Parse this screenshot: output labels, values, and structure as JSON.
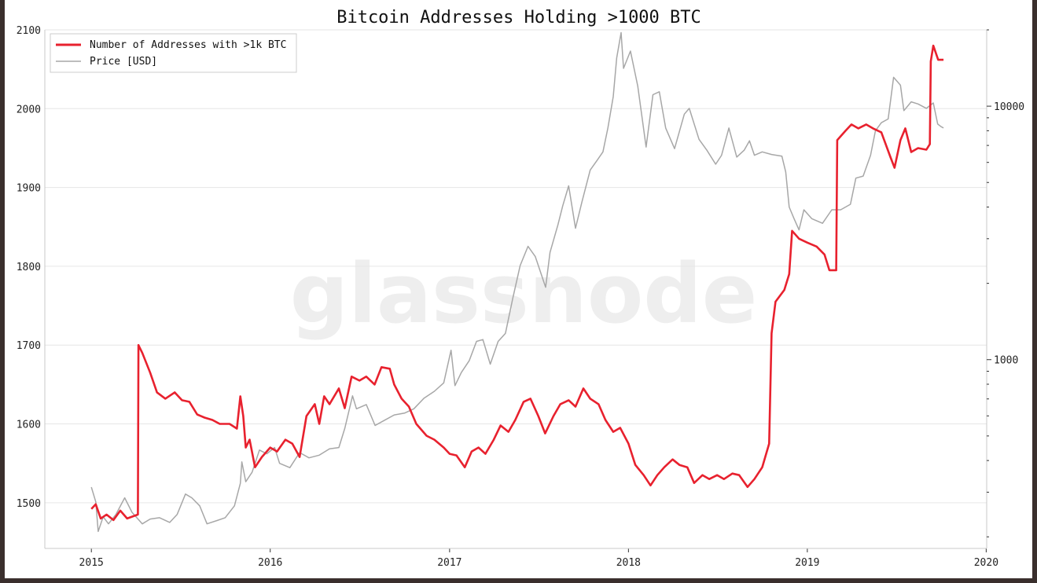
{
  "chart_data": {
    "type": "line",
    "title": "Bitcoin Addresses Holding >1000 BTC",
    "watermark": "glassnode",
    "xlabel": "",
    "ylabel": "",
    "x_axis": {
      "type": "date",
      "range": [
        "2014-09-28",
        "2020-01-02"
      ],
      "ticks": [
        "2015",
        "2016",
        "2017",
        "2018",
        "2019",
        "2020"
      ]
    },
    "y_left": {
      "range": [
        1442,
        2100
      ],
      "ticks": [
        1500,
        1600,
        1700,
        1800,
        1900,
        2000,
        2100
      ]
    },
    "y_right": {
      "scale": "log",
      "range": [
        180,
        20000
      ],
      "labeled_ticks": [
        "1000",
        "10000"
      ]
    },
    "grid": true,
    "legend_position": "top-left",
    "series": [
      {
        "name": "Number of Addresses with >1k BTC",
        "axis": "left",
        "color": "#e8212e",
        "points": [
          [
            "2015-01-01",
            1492
          ],
          [
            "2015-01-10",
            1498
          ],
          [
            "2015-01-20",
            1480
          ],
          [
            "2015-02-01",
            1485
          ],
          [
            "2015-02-15",
            1478
          ],
          [
            "2015-03-01",
            1490
          ],
          [
            "2015-03-15",
            1480
          ],
          [
            "2015-04-06",
            1485
          ],
          [
            "2015-04-07",
            1700
          ],
          [
            "2015-04-15",
            1690
          ],
          [
            "2015-05-01",
            1665
          ],
          [
            "2015-05-15",
            1640
          ],
          [
            "2015-06-01",
            1632
          ],
          [
            "2015-06-20",
            1640
          ],
          [
            "2015-07-05",
            1630
          ],
          [
            "2015-07-20",
            1628
          ],
          [
            "2015-08-05",
            1612
          ],
          [
            "2015-08-20",
            1608
          ],
          [
            "2015-09-05",
            1605
          ],
          [
            "2015-09-20",
            1600
          ],
          [
            "2015-10-10",
            1600
          ],
          [
            "2015-10-25",
            1594
          ],
          [
            "2015-11-01",
            1635
          ],
          [
            "2015-11-07",
            1610
          ],
          [
            "2015-11-12",
            1570
          ],
          [
            "2015-11-20",
            1580
          ],
          [
            "2015-12-01",
            1545
          ],
          [
            "2015-12-15",
            1558
          ],
          [
            "2016-01-01",
            1570
          ],
          [
            "2016-01-15",
            1565
          ],
          [
            "2016-02-01",
            1580
          ],
          [
            "2016-02-15",
            1575
          ],
          [
            "2016-03-01",
            1558
          ],
          [
            "2016-03-15",
            1610
          ],
          [
            "2016-04-01",
            1625
          ],
          [
            "2016-04-10",
            1600
          ],
          [
            "2016-04-20",
            1635
          ],
          [
            "2016-05-01",
            1625
          ],
          [
            "2016-05-20",
            1645
          ],
          [
            "2016-06-01",
            1620
          ],
          [
            "2016-06-15",
            1660
          ],
          [
            "2016-07-01",
            1655
          ],
          [
            "2016-07-15",
            1660
          ],
          [
            "2016-08-01",
            1650
          ],
          [
            "2016-08-15",
            1672
          ],
          [
            "2016-09-01",
            1670
          ],
          [
            "2016-09-10",
            1650
          ],
          [
            "2016-09-25",
            1632
          ],
          [
            "2016-10-10",
            1622
          ],
          [
            "2016-10-25",
            1600
          ],
          [
            "2016-11-15",
            1585
          ],
          [
            "2016-12-01",
            1580
          ],
          [
            "2016-12-20",
            1570
          ],
          [
            "2017-01-01",
            1562
          ],
          [
            "2017-01-15",
            1560
          ],
          [
            "2017-02-01",
            1545
          ],
          [
            "2017-02-15",
            1565
          ],
          [
            "2017-03-01",
            1570
          ],
          [
            "2017-03-15",
            1562
          ],
          [
            "2017-04-01",
            1580
          ],
          [
            "2017-04-15",
            1598
          ],
          [
            "2017-05-01",
            1590
          ],
          [
            "2017-05-15",
            1605
          ],
          [
            "2017-06-01",
            1628
          ],
          [
            "2017-06-15",
            1632
          ],
          [
            "2017-07-01",
            1610
          ],
          [
            "2017-07-15",
            1588
          ],
          [
            "2017-08-01",
            1610
          ],
          [
            "2017-08-15",
            1625
          ],
          [
            "2017-09-01",
            1630
          ],
          [
            "2017-09-15",
            1622
          ],
          [
            "2017-10-01",
            1645
          ],
          [
            "2017-10-15",
            1632
          ],
          [
            "2017-11-01",
            1625
          ],
          [
            "2017-11-15",
            1605
          ],
          [
            "2017-12-01",
            1590
          ],
          [
            "2017-12-15",
            1595
          ],
          [
            "2018-01-01",
            1575
          ],
          [
            "2018-01-15",
            1548
          ],
          [
            "2018-02-01",
            1535
          ],
          [
            "2018-02-15",
            1522
          ],
          [
            "2018-03-01",
            1535
          ],
          [
            "2018-03-15",
            1545
          ],
          [
            "2018-04-01",
            1555
          ],
          [
            "2018-04-15",
            1548
          ],
          [
            "2018-05-01",
            1545
          ],
          [
            "2018-05-15",
            1525
          ],
          [
            "2018-06-01",
            1535
          ],
          [
            "2018-06-15",
            1530
          ],
          [
            "2018-07-01",
            1535
          ],
          [
            "2018-07-15",
            1530
          ],
          [
            "2018-08-01",
            1537
          ],
          [
            "2018-08-15",
            1535
          ],
          [
            "2018-09-01",
            1520
          ],
          [
            "2018-09-15",
            1530
          ],
          [
            "2018-10-01",
            1545
          ],
          [
            "2018-10-15",
            1575
          ],
          [
            "2018-10-20",
            1715
          ],
          [
            "2018-10-28",
            1755
          ],
          [
            "2018-11-15",
            1770
          ],
          [
            "2018-11-25",
            1790
          ],
          [
            "2018-12-01",
            1845
          ],
          [
            "2018-12-15",
            1835
          ],
          [
            "2019-01-01",
            1830
          ],
          [
            "2019-01-20",
            1825
          ],
          [
            "2019-02-05",
            1815
          ],
          [
            "2019-02-15",
            1795
          ],
          [
            "2019-03-01",
            1795
          ],
          [
            "2019-03-03",
            1960
          ],
          [
            "2019-03-10",
            1965
          ],
          [
            "2019-03-20",
            1972
          ],
          [
            "2019-04-01",
            1980
          ],
          [
            "2019-04-15",
            1975
          ],
          [
            "2019-05-01",
            1980
          ],
          [
            "2019-05-15",
            1975
          ],
          [
            "2019-06-01",
            1970
          ],
          [
            "2019-06-20",
            1938
          ],
          [
            "2019-06-28",
            1925
          ],
          [
            "2019-07-10",
            1960
          ],
          [
            "2019-07-20",
            1975
          ],
          [
            "2019-08-01",
            1945
          ],
          [
            "2019-08-15",
            1950
          ],
          [
            "2019-09-01",
            1948
          ],
          [
            "2019-09-08",
            1955
          ],
          [
            "2019-09-10",
            2060
          ],
          [
            "2019-09-15",
            2080
          ],
          [
            "2019-09-25",
            2062
          ],
          [
            "2019-10-06",
            2062
          ]
        ]
      },
      {
        "name": "Price [USD]",
        "axis": "right",
        "color": "#a7a7a7",
        "points": [
          [
            "2015-01-01",
            314
          ],
          [
            "2015-01-10",
            275
          ],
          [
            "2015-01-15",
            210
          ],
          [
            "2015-01-25",
            240
          ],
          [
            "2015-02-05",
            225
          ],
          [
            "2015-02-20",
            245
          ],
          [
            "2015-03-10",
            285
          ],
          [
            "2015-03-25",
            250
          ],
          [
            "2015-04-15",
            225
          ],
          [
            "2015-05-01",
            235
          ],
          [
            "2015-05-20",
            238
          ],
          [
            "2015-06-10",
            228
          ],
          [
            "2015-06-25",
            245
          ],
          [
            "2015-07-12",
            295
          ],
          [
            "2015-07-25",
            285
          ],
          [
            "2015-08-10",
            265
          ],
          [
            "2015-08-25",
            225
          ],
          [
            "2015-09-15",
            232
          ],
          [
            "2015-10-01",
            238
          ],
          [
            "2015-10-20",
            265
          ],
          [
            "2015-11-01",
            325
          ],
          [
            "2015-11-04",
            395
          ],
          [
            "2015-11-12",
            330
          ],
          [
            "2015-11-25",
            360
          ],
          [
            "2015-12-10",
            440
          ],
          [
            "2015-12-25",
            425
          ],
          [
            "2016-01-10",
            450
          ],
          [
            "2016-01-20",
            390
          ],
          [
            "2016-02-10",
            375
          ],
          [
            "2016-03-01",
            430
          ],
          [
            "2016-03-20",
            410
          ],
          [
            "2016-04-10",
            420
          ],
          [
            "2016-05-01",
            445
          ],
          [
            "2016-05-20",
            450
          ],
          [
            "2016-06-01",
            535
          ],
          [
            "2016-06-17",
            720
          ],
          [
            "2016-06-25",
            640
          ],
          [
            "2016-07-15",
            665
          ],
          [
            "2016-08-02",
            550
          ],
          [
            "2016-08-20",
            575
          ],
          [
            "2016-09-10",
            605
          ],
          [
            "2016-10-01",
            615
          ],
          [
            "2016-10-20",
            640
          ],
          [
            "2016-11-10",
            705
          ],
          [
            "2016-12-01",
            750
          ],
          [
            "2016-12-20",
            810
          ],
          [
            "2017-01-04",
            1090
          ],
          [
            "2017-01-12",
            790
          ],
          [
            "2017-01-25",
            890
          ],
          [
            "2017-02-10",
            990
          ],
          [
            "2017-02-25",
            1180
          ],
          [
            "2017-03-10",
            1200
          ],
          [
            "2017-03-25",
            960
          ],
          [
            "2017-04-10",
            1180
          ],
          [
            "2017-04-25",
            1270
          ],
          [
            "2017-05-10",
            1750
          ],
          [
            "2017-05-25",
            2350
          ],
          [
            "2017-06-10",
            2800
          ],
          [
            "2017-06-25",
            2550
          ],
          [
            "2017-07-16",
            1930
          ],
          [
            "2017-07-25",
            2650
          ],
          [
            "2017-08-10",
            3400
          ],
          [
            "2017-08-20",
            4050
          ],
          [
            "2017-09-01",
            4850
          ],
          [
            "2017-09-15",
            3300
          ],
          [
            "2017-09-28",
            4180
          ],
          [
            "2017-10-15",
            5600
          ],
          [
            "2017-10-30",
            6150
          ],
          [
            "2017-11-10",
            6600
          ],
          [
            "2017-11-20",
            8200
          ],
          [
            "2017-12-01",
            10900
          ],
          [
            "2017-12-08",
            15500
          ],
          [
            "2017-12-17",
            19500
          ],
          [
            "2017-12-22",
            14100
          ],
          [
            "2018-01-05",
            16500
          ],
          [
            "2018-01-20",
            12000
          ],
          [
            "2018-02-06",
            6900
          ],
          [
            "2018-02-20",
            11100
          ],
          [
            "2018-03-05",
            11400
          ],
          [
            "2018-03-18",
            8200
          ],
          [
            "2018-04-05",
            6800
          ],
          [
            "2018-04-25",
            9300
          ],
          [
            "2018-05-05",
            9800
          ],
          [
            "2018-05-25",
            7400
          ],
          [
            "2018-06-10",
            6700
          ],
          [
            "2018-06-28",
            5900
          ],
          [
            "2018-07-10",
            6400
          ],
          [
            "2018-07-25",
            8200
          ],
          [
            "2018-08-10",
            6300
          ],
          [
            "2018-08-25",
            6700
          ],
          [
            "2018-09-05",
            7300
          ],
          [
            "2018-09-15",
            6400
          ],
          [
            "2018-10-01",
            6600
          ],
          [
            "2018-10-20",
            6450
          ],
          [
            "2018-11-10",
            6350
          ],
          [
            "2018-11-18",
            5500
          ],
          [
            "2018-11-25",
            4000
          ],
          [
            "2018-12-05",
            3600
          ],
          [
            "2018-12-15",
            3250
          ],
          [
            "2018-12-25",
            3900
          ],
          [
            "2019-01-10",
            3600
          ],
          [
            "2019-02-01",
            3450
          ],
          [
            "2019-02-20",
            3900
          ],
          [
            "2019-03-10",
            3900
          ],
          [
            "2019-03-30",
            4100
          ],
          [
            "2019-04-10",
            5200
          ],
          [
            "2019-04-25",
            5300
          ],
          [
            "2019-05-10",
            6400
          ],
          [
            "2019-05-20",
            8000
          ],
          [
            "2019-06-01",
            8600
          ],
          [
            "2019-06-15",
            8900
          ],
          [
            "2019-06-26",
            13000
          ],
          [
            "2019-07-10",
            12100
          ],
          [
            "2019-07-17",
            9600
          ],
          [
            "2019-08-01",
            10400
          ],
          [
            "2019-08-15",
            10200
          ],
          [
            "2019-09-01",
            9800
          ],
          [
            "2019-09-15",
            10300
          ],
          [
            "2019-09-24",
            8500
          ],
          [
            "2019-10-01",
            8300
          ],
          [
            "2019-10-06",
            8200
          ]
        ]
      }
    ]
  }
}
